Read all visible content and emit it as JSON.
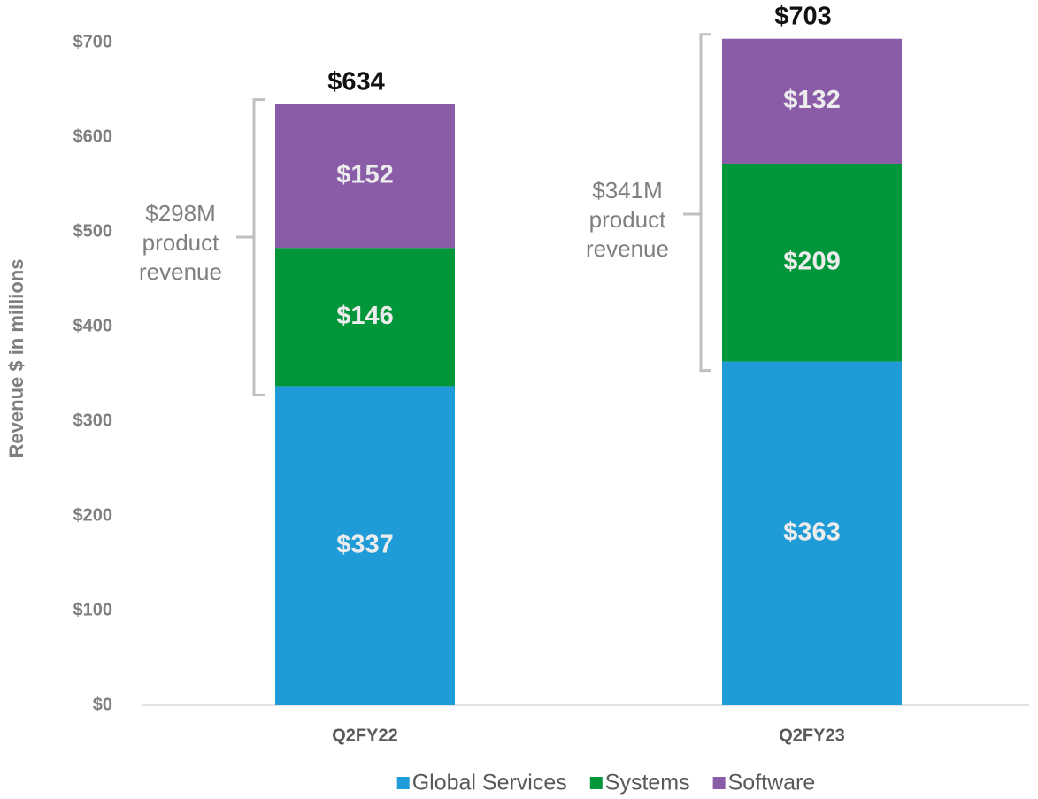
{
  "chart_data": {
    "type": "stacked_bar",
    "y_label": "Revenue $ in millions",
    "categories": [
      "Q2FY22",
      "Q2FY23"
    ],
    "series": [
      {
        "name": "Global Services",
        "color": "#1f9bd7",
        "values": [
          337,
          363
        ],
        "value_labels": [
          "$337",
          "$363"
        ]
      },
      {
        "name": "Systems",
        "color": "#009639",
        "values": [
          146,
          209
        ],
        "value_labels": [
          "$146",
          "$209"
        ]
      },
      {
        "name": "Software",
        "color": "#8a5ca8",
        "values": [
          152,
          132
        ],
        "value_labels": [
          "$152",
          "$132"
        ]
      }
    ],
    "totals": [
      634,
      703
    ],
    "total_labels": [
      "$634",
      "$703"
    ],
    "annotations": [
      {
        "lines": [
          "$298M",
          "product",
          "revenue"
        ]
      },
      {
        "lines": [
          "$341M",
          "product",
          "revenue"
        ]
      }
    ],
    "ylim": [
      0,
      700
    ],
    "yticks": [
      {
        "value": 0,
        "label": "$0"
      },
      {
        "value": 100,
        "label": "$100"
      },
      {
        "value": 200,
        "label": "$200"
      },
      {
        "value": 300,
        "label": "$300"
      },
      {
        "value": 400,
        "label": "$400"
      },
      {
        "value": 500,
        "label": "$500"
      },
      {
        "value": 600,
        "label": "$600"
      },
      {
        "value": 700,
        "label": "$700"
      }
    ],
    "legend": "bottom"
  }
}
